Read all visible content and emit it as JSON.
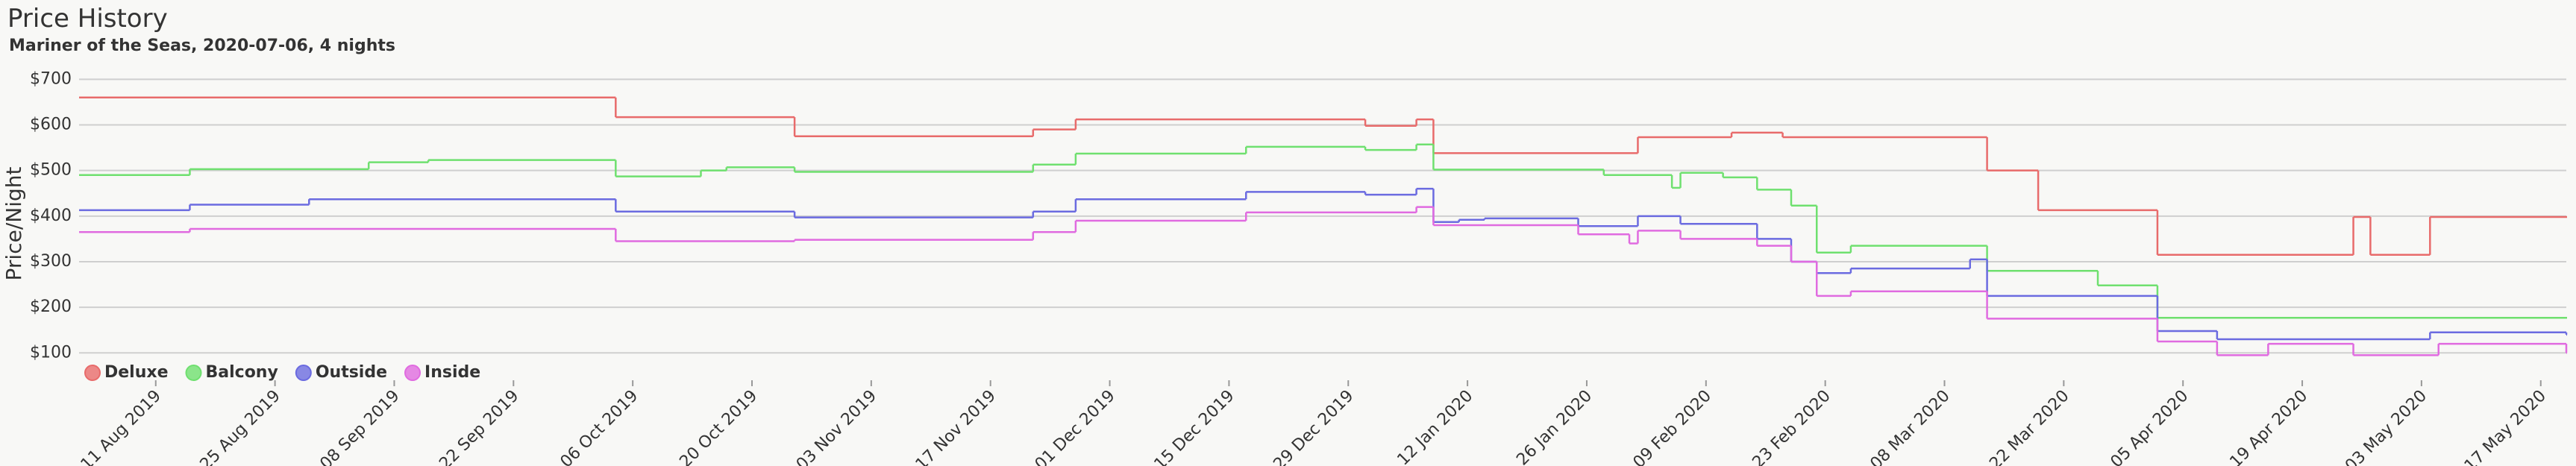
{
  "chart_data": {
    "type": "step",
    "title": "Price History",
    "subtitle": "Mariner of the Seas, 2020-07-06, 4 nights",
    "y_label": "Price/Night",
    "xlim": [
      "2019-08-02",
      "2020-05-20"
    ],
    "xticks": [
      {
        "value": "2019-08-11",
        "label": "11 Aug 2019"
      },
      {
        "value": "2019-08-25",
        "label": "25 Aug 2019"
      },
      {
        "value": "2019-09-08",
        "label": "08 Sep 2019"
      },
      {
        "value": "2019-09-22",
        "label": "22 Sep 2019"
      },
      {
        "value": "2019-10-06",
        "label": "06 Oct 2019"
      },
      {
        "value": "2019-10-20",
        "label": "20 Oct 2019"
      },
      {
        "value": "2019-11-03",
        "label": "03 Nov 2019"
      },
      {
        "value": "2019-11-17",
        "label": "17 Nov 2019"
      },
      {
        "value": "2019-12-01",
        "label": "01 Dec 2019"
      },
      {
        "value": "2019-12-15",
        "label": "15 Dec 2019"
      },
      {
        "value": "2019-12-29",
        "label": "29 Dec 2019"
      },
      {
        "value": "2020-01-12",
        "label": "12 Jan 2020"
      },
      {
        "value": "2020-01-26",
        "label": "26 Jan 2020"
      },
      {
        "value": "2020-02-09",
        "label": "09 Feb 2020"
      },
      {
        "value": "2020-02-23",
        "label": "23 Feb 2020"
      },
      {
        "value": "2020-03-08",
        "label": "08 Mar 2020"
      },
      {
        "value": "2020-03-22",
        "label": "22 Mar 2020"
      },
      {
        "value": "2020-04-05",
        "label": "05 Apr 2020"
      },
      {
        "value": "2020-04-19",
        "label": "19 Apr 2020"
      },
      {
        "value": "2020-05-03",
        "label": "03 May 2020"
      },
      {
        "value": "2020-05-17",
        "label": "17 May 2020"
      }
    ],
    "ylim": [
      40,
      730
    ],
    "yticks": [
      {
        "value": 100,
        "label": "$100"
      },
      {
        "value": 200,
        "label": "$200"
      },
      {
        "value": 300,
        "label": "$300"
      },
      {
        "value": 400,
        "label": "$400"
      },
      {
        "value": 500,
        "label": "$500"
      },
      {
        "value": 600,
        "label": "$600"
      },
      {
        "value": 700,
        "label": "$700"
      }
    ],
    "grid": true,
    "legend": "bottom-left",
    "series": [
      {
        "name": "Deluxe",
        "color": "#e86b6b",
        "x": [
          "2019-08-02",
          "2019-10-04",
          "2019-10-25",
          "2019-11-22",
          "2019-11-27",
          "2019-12-31",
          "2020-01-06",
          "2020-01-08",
          "2020-02-01",
          "2020-02-12",
          "2020-02-18",
          "2020-03-13",
          "2020-03-19",
          "2020-04-02",
          "2020-04-25",
          "2020-04-27",
          "2020-05-04",
          "2020-05-20"
        ],
        "values": [
          660,
          617,
          575,
          590,
          612,
          598,
          612,
          538,
          573,
          583,
          573,
          500,
          413,
          315,
          398,
          315,
          398,
          398
        ]
      },
      {
        "name": "Balcony",
        "color": "#6fe06f",
        "x": [
          "2019-08-02",
          "2019-08-15",
          "2019-09-05",
          "2019-09-12",
          "2019-10-04",
          "2019-10-14",
          "2019-10-17",
          "2019-10-25",
          "2019-11-22",
          "2019-11-27",
          "2019-12-17",
          "2019-12-31",
          "2020-01-06",
          "2020-01-08",
          "2020-01-28",
          "2020-02-05",
          "2020-02-06",
          "2020-02-11",
          "2020-02-15",
          "2020-02-19",
          "2020-02-22",
          "2020-02-26",
          "2020-03-13",
          "2020-03-26",
          "2020-04-02",
          "2020-05-20"
        ],
        "values": [
          490,
          503,
          518,
          523,
          487,
          500,
          507,
          497,
          513,
          537,
          552,
          545,
          557,
          502,
          490,
          462,
          495,
          485,
          458,
          423,
          320,
          335,
          280,
          248,
          177,
          177
        ]
      },
      {
        "name": "Outside",
        "color": "#6b6be0",
        "x": [
          "2019-08-02",
          "2019-08-15",
          "2019-08-29",
          "2019-10-04",
          "2019-10-25",
          "2019-11-22",
          "2019-11-27",
          "2019-12-17",
          "2019-12-31",
          "2020-01-06",
          "2020-01-08",
          "2020-01-11",
          "2020-01-14",
          "2020-01-25",
          "2020-02-01",
          "2020-02-06",
          "2020-02-15",
          "2020-02-19",
          "2020-02-22",
          "2020-02-26",
          "2020-03-11",
          "2020-03-13",
          "2020-04-02",
          "2020-04-09",
          "2020-05-04",
          "2020-05-20"
        ],
        "values": [
          413,
          425,
          437,
          410,
          397,
          410,
          437,
          453,
          447,
          460,
          387,
          392,
          395,
          378,
          400,
          383,
          350,
          300,
          275,
          285,
          305,
          225,
          148,
          130,
          145,
          140
        ]
      },
      {
        "name": "Inside",
        "color": "#e06be0",
        "x": [
          "2019-08-02",
          "2019-08-15",
          "2019-10-04",
          "2019-10-25",
          "2019-11-22",
          "2019-11-27",
          "2019-12-17",
          "2020-01-06",
          "2020-01-08",
          "2020-01-25",
          "2020-01-31",
          "2020-02-01",
          "2020-02-06",
          "2020-02-15",
          "2020-02-19",
          "2020-02-22",
          "2020-02-26",
          "2020-03-13",
          "2020-04-02",
          "2020-04-09",
          "2020-04-15",
          "2020-04-25",
          "2020-05-05",
          "2020-05-20"
        ],
        "values": [
          365,
          372,
          345,
          348,
          365,
          390,
          408,
          420,
          380,
          360,
          340,
          368,
          350,
          335,
          300,
          225,
          235,
          175,
          125,
          95,
          120,
          95,
          120,
          100
        ]
      }
    ]
  }
}
